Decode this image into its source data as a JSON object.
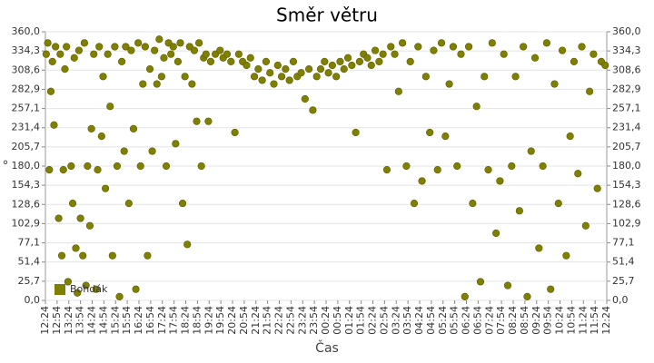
{
  "chart_data": {
    "type": "scatter",
    "title": "Směr větru",
    "x_label": "Čas",
    "y_label": "°",
    "xticks": [
      "12:24",
      "12:54",
      "13:24",
      "13:54",
      "14:24",
      "14:54",
      "15:24",
      "15:54",
      "16:24",
      "16:54",
      "17:24",
      "17:54",
      "18:24",
      "18:54",
      "19:24",
      "19:54",
      "20:24",
      "20:54",
      "21:24",
      "21:54",
      "22:24",
      "22:54",
      "23:24",
      "23:54",
      "00:24",
      "00:54",
      "01:24",
      "01:54",
      "02:24",
      "02:54",
      "03:24",
      "03:54",
      "04:24",
      "04:54",
      "05:24",
      "05:54",
      "06:24",
      "06:54",
      "07:24",
      "07:54",
      "08:24",
      "08:54",
      "09:24",
      "09:54",
      "10:24",
      "10:54",
      "11:24",
      "11:54",
      "12:24"
    ],
    "ylim": [
      0,
      360
    ],
    "yticks": [
      {
        "value": 0,
        "label": "0,0"
      },
      {
        "value": 25.7,
        "label": "25,7"
      },
      {
        "value": 51.4,
        "label": "51,4"
      },
      {
        "value": 77.1,
        "label": "77,1"
      },
      {
        "value": 102.9,
        "label": "102,9"
      },
      {
        "value": 128.6,
        "label": "128,6"
      },
      {
        "value": 154.3,
        "label": "154,3"
      },
      {
        "value": 180,
        "label": "180,0"
      },
      {
        "value": 205.7,
        "label": "205,7"
      },
      {
        "value": 231.4,
        "label": "231,4"
      },
      {
        "value": 257.1,
        "label": "257,1"
      },
      {
        "value": 282.9,
        "label": "282,9"
      },
      {
        "value": 308.6,
        "label": "308,6"
      },
      {
        "value": 334.3,
        "label": "334,3"
      },
      {
        "value": 360,
        "label": "360,0"
      }
    ],
    "grid": true,
    "legend": "lower left",
    "series": [
      {
        "name": "Bohdák",
        "color": "#808000",
        "x": [
          "12:26",
          "12:30",
          "12:34",
          "12:38",
          "12:42",
          "12:46",
          "12:50",
          "12:58",
          "13:02",
          "13:06",
          "13:10",
          "13:14",
          "13:18",
          "13:22",
          "13:30",
          "13:34",
          "13:38",
          "13:42",
          "13:46",
          "13:50",
          "13:54",
          "14:00",
          "14:04",
          "14:08",
          "14:12",
          "14:18",
          "14:22",
          "14:28",
          "14:34",
          "14:38",
          "14:42",
          "14:48",
          "14:52",
          "14:58",
          "15:04",
          "15:10",
          "15:16",
          "15:22",
          "15:28",
          "15:34",
          "15:40",
          "15:46",
          "15:50",
          "15:58",
          "16:04",
          "16:10",
          "16:16",
          "16:22",
          "16:28",
          "16:34",
          "16:40",
          "16:46",
          "16:52",
          "16:58",
          "17:04",
          "17:10",
          "17:16",
          "17:22",
          "17:28",
          "17:34",
          "17:40",
          "17:46",
          "17:52",
          "17:58",
          "18:04",
          "18:10",
          "18:16",
          "18:22",
          "18:28",
          "18:34",
          "18:40",
          "18:46",
          "18:52",
          "18:58",
          "19:04",
          "19:10",
          "19:16",
          "19:22",
          "19:28",
          "19:40",
          "19:52",
          "20:00",
          "20:10",
          "20:20",
          "20:30",
          "20:40",
          "20:50",
          "21:00",
          "21:10",
          "21:20",
          "21:30",
          "21:40",
          "21:50",
          "22:00",
          "22:10",
          "22:20",
          "22:30",
          "22:40",
          "22:50",
          "23:00",
          "23:10",
          "23:20",
          "23:30",
          "23:40",
          "23:50",
          "00:00",
          "00:10",
          "00:20",
          "00:30",
          "00:40",
          "00:50",
          "01:00",
          "01:10",
          "01:20",
          "01:30",
          "01:40",
          "01:50",
          "02:00",
          "02:10",
          "02:20",
          "02:30",
          "02:40",
          "02:50",
          "03:00",
          "03:10",
          "03:20",
          "03:30",
          "03:40",
          "03:50",
          "04:00",
          "04:10",
          "04:20",
          "04:30",
          "04:40",
          "04:50",
          "05:00",
          "05:10",
          "05:20",
          "05:30",
          "05:40",
          "05:50",
          "06:00",
          "06:10",
          "06:20",
          "06:30",
          "06:40",
          "06:50",
          "07:00",
          "07:10",
          "07:20",
          "07:30",
          "07:40",
          "07:50",
          "08:00",
          "08:10",
          "08:20",
          "08:30",
          "08:40",
          "08:50",
          "09:00",
          "09:10",
          "09:20",
          "09:30",
          "09:40",
          "09:50",
          "10:00",
          "10:10",
          "10:20",
          "10:30",
          "10:40",
          "10:50",
          "11:00",
          "11:10",
          "11:20",
          "11:30",
          "11:40",
          "11:50",
          "12:00",
          "12:10",
          "12:20"
        ],
        "values": [
          330,
          345,
          175,
          280,
          320,
          235,
          340,
          110,
          330,
          60,
          175,
          310,
          340,
          25,
          180,
          130,
          325,
          70,
          10,
          335,
          110,
          60,
          345,
          20,
          180,
          100,
          230,
          330,
          15,
          175,
          340,
          220,
          300,
          150,
          330,
          260,
          60,
          340,
          180,
          5,
          320,
          200,
          340,
          130,
          335,
          230,
          15,
          345,
          180,
          290,
          340,
          60,
          310,
          200,
          335,
          290,
          350,
          300,
          325,
          180,
          345,
          330,
          340,
          210,
          320,
          345,
          130,
          300,
          75,
          340,
          290,
          335,
          240,
          345,
          180,
          325,
          330,
          240,
          320,
          330,
          335,
          325,
          330,
          320,
          225,
          330,
          320,
          315,
          325,
          300,
          310,
          295,
          320,
          305,
          290,
          315,
          300,
          310,
          295,
          320,
          300,
          305,
          270,
          310,
          255,
          300,
          310,
          320,
          305,
          315,
          300,
          320,
          310,
          325,
          315,
          225,
          320,
          330,
          325,
          315,
          335,
          320,
          330,
          175,
          340,
          330,
          280,
          345,
          180,
          320,
          130,
          340,
          160,
          300,
          225,
          335,
          175,
          345,
          220,
          290,
          340,
          180,
          330,
          5,
          340,
          130,
          260,
          25,
          300,
          175,
          345,
          90,
          160,
          330,
          20,
          180,
          300,
          120,
          340,
          5,
          200,
          325,
          70,
          180,
          345,
          15,
          290,
          130,
          335,
          60,
          220,
          320,
          170,
          340,
          100,
          280,
          330,
          150,
          320,
          315
        ]
      }
    ]
  }
}
